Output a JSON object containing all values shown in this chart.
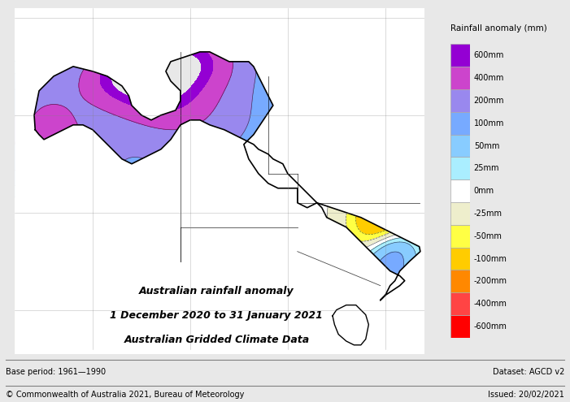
{
  "title_line1": "Australian rainfall anomaly",
  "title_line2": "1 December 2020 to 31 January 2021",
  "title_line3": "Australian Gridded Climate Data",
  "base_period": "Base period: 1961—1990",
  "dataset": "Dataset: AGCD v2",
  "copyright": "© Commonwealth of Australia 2021, Bureau of Meteorology",
  "issued": "Issued: 20/02/2021",
  "colorbar_title": "Rainfall anomaly (mm)",
  "colorbar_labels": [
    "600mm",
    "400mm",
    "200mm",
    "100mm",
    "50mm",
    "25mm",
    "0mm",
    "-25mm",
    "-50mm",
    "-100mm",
    "-200mm",
    "-400mm",
    "-600mm"
  ],
  "colorbar_colors": [
    "#9400D3",
    "#CC44CC",
    "#9988EE",
    "#77AAFF",
    "#88CCFF",
    "#AAEEFF",
    "#FFFFFF",
    "#EEEECC",
    "#FFFF44",
    "#FFCC00",
    "#FF8800",
    "#FF4444",
    "#FF0000"
  ],
  "background_color": "#e8e8e8",
  "map_bg": "#ffffff",
  "figsize": [
    7.01,
    4.95
  ],
  "dpi": 100
}
